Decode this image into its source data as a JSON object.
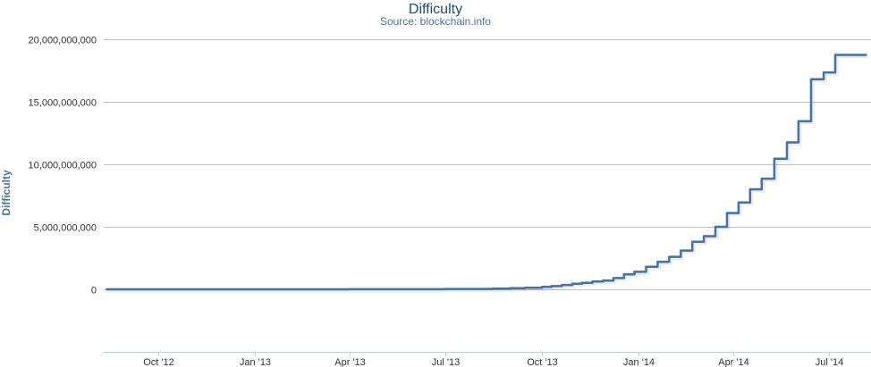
{
  "chart_data": {
    "type": "line",
    "title": "Difficulty",
    "subtitle": "Source: blockchain.info",
    "xlabel": "",
    "ylabel": "Difficulty",
    "ylim": [
      -5000000000,
      20000000000
    ],
    "xlim": [
      "2012-08-10",
      "2014-08-10"
    ],
    "yticks": [
      0,
      5000000000,
      10000000000,
      15000000000,
      20000000000
    ],
    "ytick_labels": [
      "0",
      "5,000,000,000",
      "10,000,000,000",
      "15,000,000,000",
      "20,000,000,000"
    ],
    "xticks": [
      "2012-10-01",
      "2013-01-01",
      "2013-04-01",
      "2013-07-01",
      "2013-10-01",
      "2014-01-01",
      "2014-04-01",
      "2014-07-01"
    ],
    "xtick_labels": [
      "Oct '12",
      "Jan '13",
      "Apr '13",
      "Jul '13",
      "Oct '13",
      "Jan '14",
      "Apr '14",
      "Jul '14"
    ],
    "grid": true,
    "legend": "none",
    "color": "#4572a7",
    "series": [
      {
        "x": [
          "2012-08-12",
          "2013-04-01",
          "2013-07-01",
          "2013-08-15",
          "2013-09-01",
          "2013-09-15",
          "2013-10-01",
          "2013-10-10",
          "2013-10-20",
          "2013-10-30",
          "2013-11-08",
          "2013-11-18",
          "2013-11-28",
          "2013-12-08",
          "2013-12-18",
          "2013-12-28",
          "2014-01-08",
          "2014-01-19",
          "2014-01-30",
          "2014-02-10",
          "2014-02-21",
          "2014-03-04",
          "2014-03-15",
          "2014-03-26",
          "2014-04-06",
          "2014-04-17",
          "2014-04-28",
          "2014-05-10",
          "2014-05-22",
          "2014-06-02",
          "2014-06-14",
          "2014-06-26",
          "2014-07-07",
          "2014-07-19",
          "2014-08-01",
          "2014-08-06"
        ],
        "y": [
          0,
          10000000,
          30000000,
          60000000,
          90000000,
          130000000,
          190000000,
          260000000,
          350000000,
          450000000,
          520000000,
          620000000,
          700000000,
          900000000,
          1200000000,
          1400000000,
          1800000000,
          2200000000,
          2600000000,
          3100000000,
          3800000000,
          4250000000,
          5000000000,
          6100000000,
          6950000000,
          8000000000,
          8850000000,
          10450000000,
          11750000000,
          13450000000,
          16800000000,
          17350000000,
          18750000000,
          18750000000,
          18750000000,
          18750000000
        ]
      }
    ]
  }
}
